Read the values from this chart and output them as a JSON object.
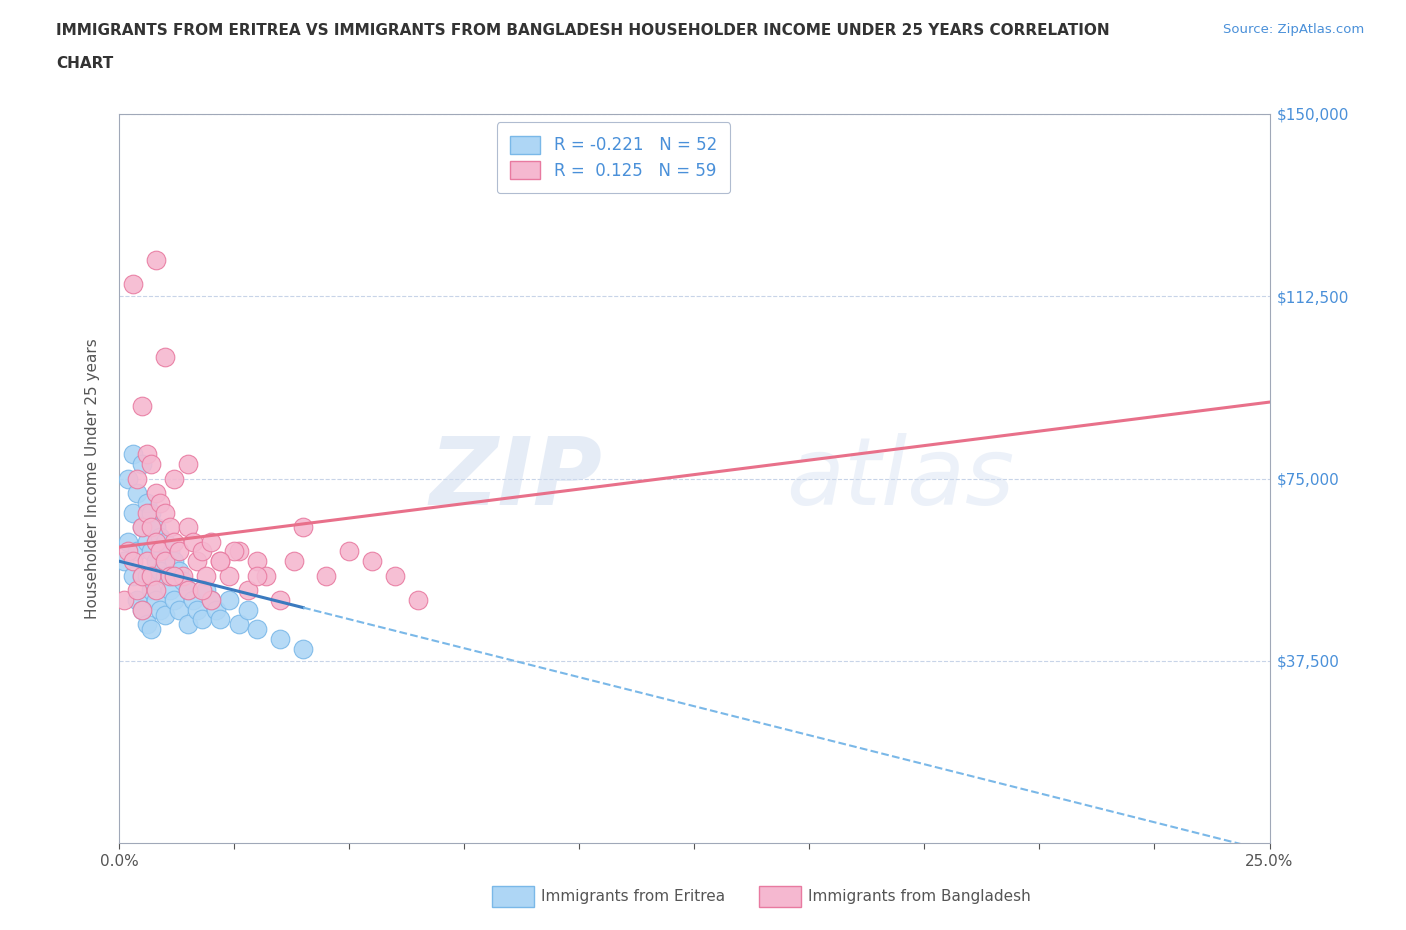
{
  "title": "IMMIGRANTS FROM ERITREA VS IMMIGRANTS FROM BANGLADESH HOUSEHOLDER INCOME UNDER 25 YEARS CORRELATION\nCHART",
  "source_text": "Source: ZipAtlas.com",
  "ylabel": "Householder Income Under 25 years",
  "xlim": [
    0.0,
    0.25
  ],
  "ylim": [
    0,
    150000
  ],
  "xticks": [
    0.0,
    0.025,
    0.05,
    0.075,
    0.1,
    0.125,
    0.15,
    0.175,
    0.2,
    0.225,
    0.25
  ],
  "yticks": [
    0,
    37500,
    75000,
    112500,
    150000
  ],
  "yticklabels": [
    "",
    "$37,500",
    "$75,000",
    "$112,500",
    "$150,000"
  ],
  "watermark_zip": "ZIP",
  "watermark_atlas": "atlas",
  "eritrea_color": "#aed6f5",
  "eritrea_edge": "#7ab8e8",
  "bangladesh_color": "#f5b8d0",
  "bangladesh_edge": "#e87aa0",
  "eritrea_R": -0.221,
  "eritrea_N": 52,
  "bangladesh_R": 0.125,
  "bangladesh_N": 59,
  "eritrea_label": "Immigrants from Eritrea",
  "bangladesh_label": "Immigrants from Bangladesh",
  "eritrea_x": [
    0.001,
    0.002,
    0.002,
    0.003,
    0.003,
    0.003,
    0.004,
    0.004,
    0.004,
    0.005,
    0.005,
    0.005,
    0.005,
    0.006,
    0.006,
    0.006,
    0.006,
    0.007,
    0.007,
    0.007,
    0.007,
    0.008,
    0.008,
    0.008,
    0.009,
    0.009,
    0.009,
    0.01,
    0.01,
    0.01,
    0.011,
    0.011,
    0.012,
    0.012,
    0.013,
    0.013,
    0.014,
    0.015,
    0.015,
    0.016,
    0.017,
    0.018,
    0.019,
    0.02,
    0.021,
    0.022,
    0.024,
    0.026,
    0.028,
    0.03,
    0.035,
    0.04
  ],
  "eritrea_y": [
    58000,
    75000,
    62000,
    80000,
    68000,
    55000,
    72000,
    60000,
    50000,
    78000,
    65000,
    55000,
    48000,
    70000,
    62000,
    55000,
    45000,
    68000,
    60000,
    52000,
    44000,
    65000,
    58000,
    50000,
    63000,
    56000,
    48000,
    62000,
    55000,
    47000,
    60000,
    52000,
    58000,
    50000,
    56000,
    48000,
    54000,
    52000,
    45000,
    50000,
    48000,
    46000,
    52000,
    50000,
    48000,
    46000,
    50000,
    45000,
    48000,
    44000,
    42000,
    40000
  ],
  "bangladesh_x": [
    0.001,
    0.002,
    0.003,
    0.003,
    0.004,
    0.004,
    0.005,
    0.005,
    0.005,
    0.006,
    0.006,
    0.006,
    0.007,
    0.007,
    0.007,
    0.008,
    0.008,
    0.008,
    0.009,
    0.009,
    0.01,
    0.01,
    0.011,
    0.011,
    0.012,
    0.012,
    0.013,
    0.014,
    0.015,
    0.015,
    0.016,
    0.017,
    0.018,
    0.019,
    0.02,
    0.022,
    0.024,
    0.026,
    0.028,
    0.03,
    0.032,
    0.035,
    0.038,
    0.04,
    0.045,
    0.05,
    0.055,
    0.06,
    0.065,
    0.005,
    0.008,
    0.01,
    0.012,
    0.015,
    0.02,
    0.025,
    0.03,
    0.018,
    0.022
  ],
  "bangladesh_y": [
    50000,
    60000,
    115000,
    58000,
    75000,
    52000,
    90000,
    65000,
    55000,
    80000,
    68000,
    58000,
    78000,
    65000,
    55000,
    72000,
    62000,
    52000,
    70000,
    60000,
    68000,
    58000,
    65000,
    55000,
    75000,
    62000,
    60000,
    55000,
    78000,
    65000,
    62000,
    58000,
    60000,
    55000,
    62000,
    58000,
    55000,
    60000,
    52000,
    58000,
    55000,
    50000,
    58000,
    65000,
    55000,
    60000,
    58000,
    55000,
    50000,
    48000,
    120000,
    100000,
    55000,
    52000,
    50000,
    60000,
    55000,
    52000,
    58000
  ],
  "bg_color": "#ffffff",
  "grid_color": "#c8d4e8",
  "axis_color": "#a0a8b8",
  "tick_color": "#555555",
  "ylabel_color": "#555555",
  "title_color": "#333333",
  "source_color": "#4a90d9",
  "ytick_color": "#4a90d9",
  "trend_eritrea_solid_color": "#3a7abf",
  "trend_eritrea_dash_color": "#7ab8e8",
  "trend_bangladesh_color": "#e8708a",
  "legend_box_color": "#4a90d9"
}
